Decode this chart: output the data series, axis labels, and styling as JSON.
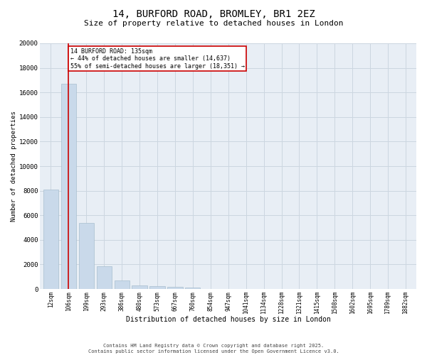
{
  "title1": "14, BURFORD ROAD, BROMLEY, BR1 2EZ",
  "title2": "Size of property relative to detached houses in London",
  "xlabel": "Distribution of detached houses by size in London",
  "ylabel": "Number of detached properties",
  "categories": [
    "12sqm",
    "106sqm",
    "199sqm",
    "293sqm",
    "386sqm",
    "480sqm",
    "573sqm",
    "667sqm",
    "760sqm",
    "854sqm",
    "947sqm",
    "1041sqm",
    "1134sqm",
    "1228sqm",
    "1321sqm",
    "1415sqm",
    "1508sqm",
    "1602sqm",
    "1695sqm",
    "1789sqm",
    "1882sqm"
  ],
  "values": [
    8100,
    16700,
    5400,
    1850,
    680,
    310,
    230,
    170,
    100,
    0,
    0,
    0,
    0,
    0,
    0,
    0,
    0,
    0,
    0,
    0,
    0
  ],
  "bar_color": "#c9d9ea",
  "bar_edge_color": "#a8bece",
  "vline_x_index": 1,
  "vline_color": "#cc0000",
  "annotation_text": "14 BURFORD ROAD: 135sqm\n← 44% of detached houses are smaller (14,637)\n55% of semi-detached houses are larger (18,351) →",
  "annotation_box_facecolor": "#ffffff",
  "annotation_box_edgecolor": "#cc0000",
  "ylim": [
    0,
    20000
  ],
  "yticks": [
    0,
    2000,
    4000,
    6000,
    8000,
    10000,
    12000,
    14000,
    16000,
    18000,
    20000
  ],
  "grid_color": "#ccd6e0",
  "background_color": "#e8eef5",
  "footer1": "Contains HM Land Registry data © Crown copyright and database right 2025.",
  "footer2": "Contains public sector information licensed under the Open Government Licence v3.0."
}
